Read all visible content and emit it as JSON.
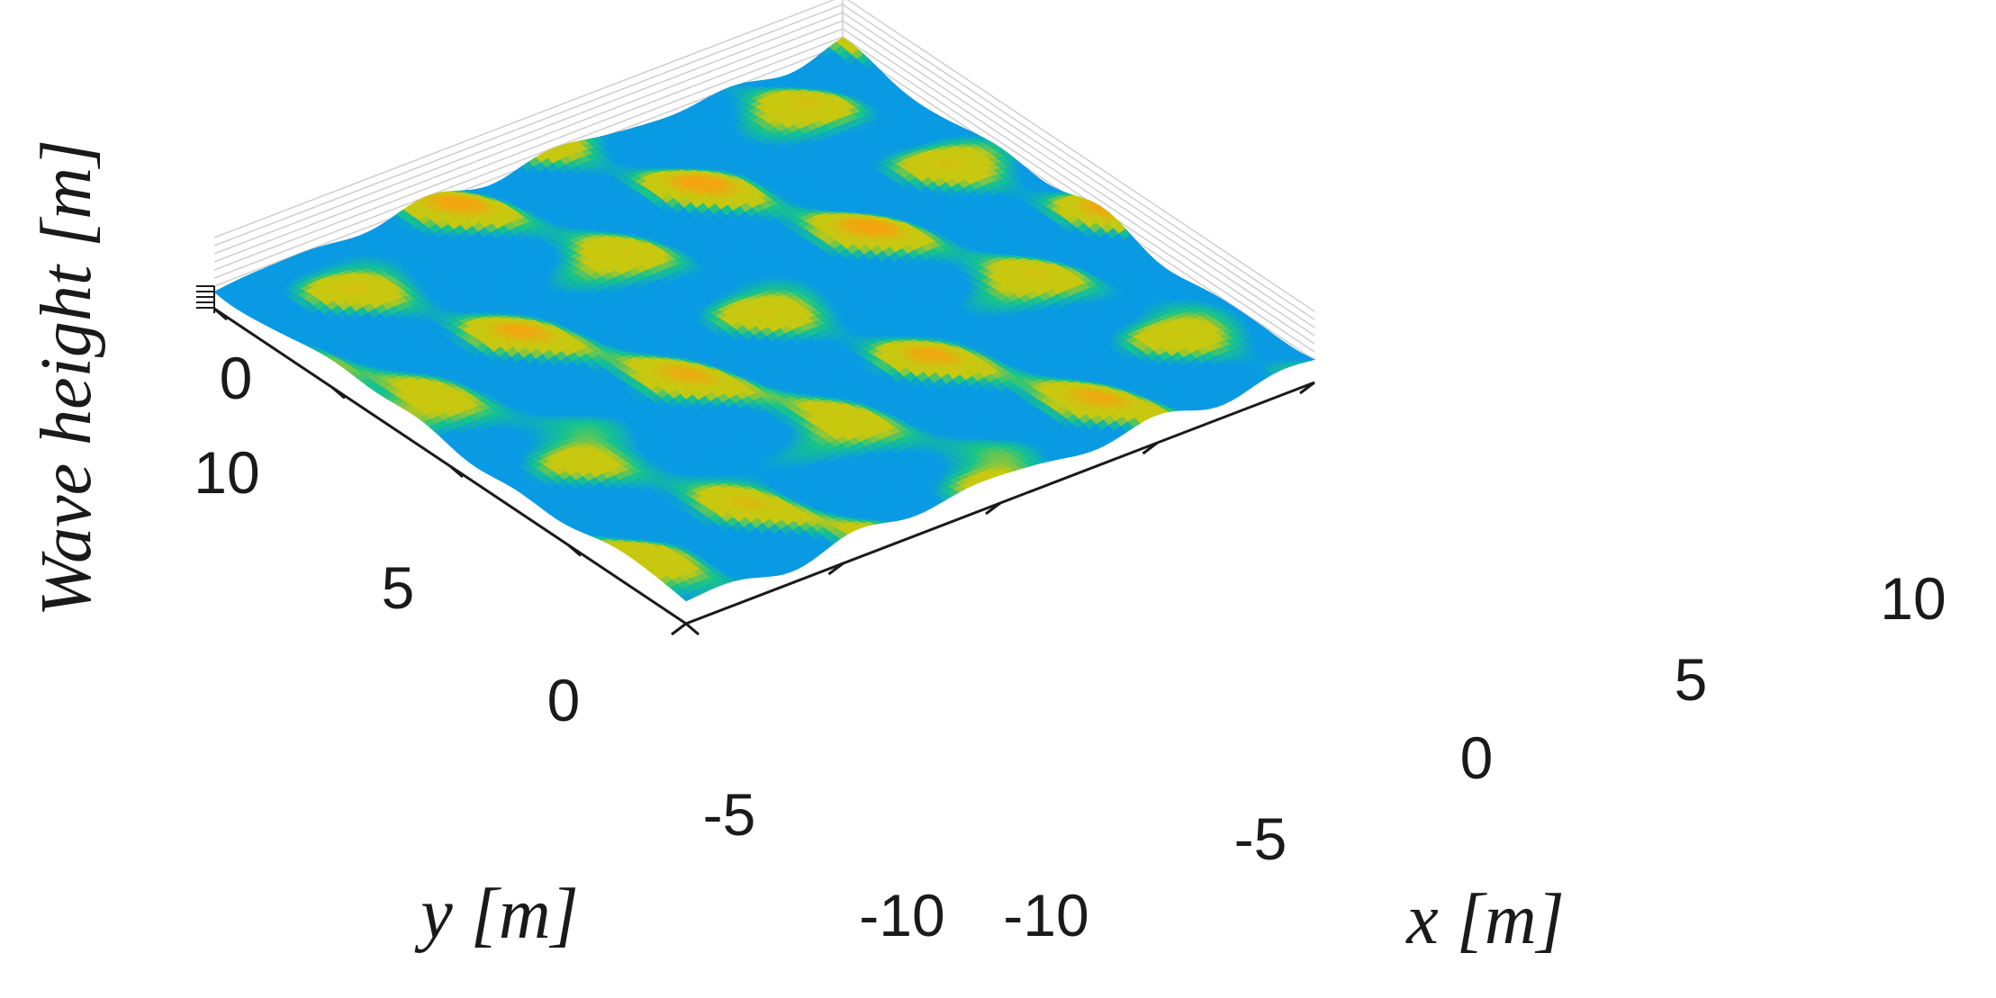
{
  "chart_data": {
    "type": "surface",
    "title": "",
    "xlabel": "x [m]",
    "ylabel": "y [m]",
    "zlabel": "Wave height [m]",
    "x_range": [
      -10,
      10
    ],
    "y_range": [
      -10,
      10
    ],
    "x_ticks": [
      "-10",
      "-5",
      "0",
      "5",
      "10"
    ],
    "y_ticks": [
      "-5",
      "0",
      "5",
      "10"
    ],
    "y_corner_tick": "-10",
    "z_ticks": [
      "0"
    ],
    "grid": true,
    "colormap": {
      "low": "#0a9ae4",
      "mid": "#17c48a",
      "high": "#c8c810",
      "peak": "#f2a510"
    }
  }
}
